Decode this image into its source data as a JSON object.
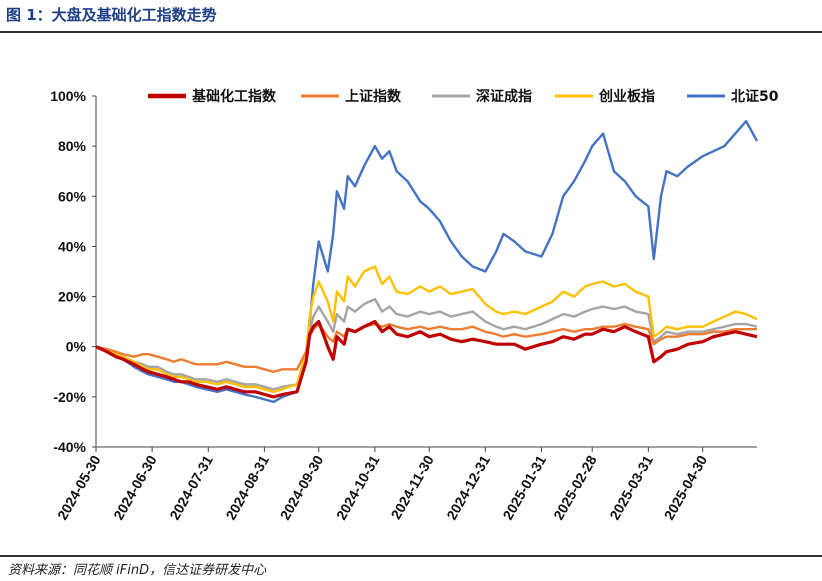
{
  "header": {
    "title": "图 1：大盘及基础化工指数走势"
  },
  "footer": {
    "source": "资料来源：同花顺 iFinD，信达证券研发中心"
  },
  "chart_data": {
    "type": "line",
    "ylim": [
      -40,
      100
    ],
    "yticks": [
      -40,
      -20,
      0,
      20,
      40,
      60,
      80,
      100
    ],
    "ytick_labels": [
      "-40%",
      "-20%",
      "0%",
      "20%",
      "40%",
      "60%",
      "80%",
      "100%"
    ],
    "xlim": [
      "2024-05-30",
      "2025-05-30"
    ],
    "xticks": [
      "2024-05-30",
      "2024-06-30",
      "2024-07-31",
      "2024-08-31",
      "2024-09-30",
      "2024-10-31",
      "2024-11-30",
      "2024-12-31",
      "2025-01-31",
      "2025-02-28",
      "2025-03-31",
      "2025-04-30"
    ],
    "grid": false,
    "legend_position": "top",
    "series": [
      {
        "name": "基础化工指数",
        "color": "#c00000",
        "x": [
          "2024-05-30",
          "2024-06-05",
          "2024-06-10",
          "2024-06-14",
          "2024-06-20",
          "2024-06-25",
          "2024-06-28",
          "2024-07-03",
          "2024-07-08",
          "2024-07-12",
          "2024-07-16",
          "2024-07-20",
          "2024-07-24",
          "2024-07-30",
          "2024-08-05",
          "2024-08-10",
          "2024-08-15",
          "2024-08-20",
          "2024-08-26",
          "2024-08-31",
          "2024-09-05",
          "2024-09-10",
          "2024-09-18",
          "2024-09-23",
          "2024-09-25",
          "2024-09-27",
          "2024-09-30",
          "2024-10-05",
          "2024-10-08",
          "2024-10-10",
          "2024-10-14",
          "2024-10-16",
          "2024-10-20",
          "2024-10-25",
          "2024-10-31",
          "2024-11-04",
          "2024-11-08",
          "2024-11-12",
          "2024-11-18",
          "2024-11-25",
          "2024-11-30",
          "2024-12-06",
          "2024-12-12",
          "2024-12-18",
          "2024-12-24",
          "2024-12-31",
          "2025-01-06",
          "2025-01-10",
          "2025-01-16",
          "2025-01-22",
          "2025-01-31",
          "2025-02-06",
          "2025-02-12",
          "2025-02-18",
          "2025-02-24",
          "2025-02-28",
          "2025-03-06",
          "2025-03-12",
          "2025-03-18",
          "2025-03-24",
          "2025-03-31",
          "2025-04-03",
          "2025-04-07",
          "2025-04-10",
          "2025-04-16",
          "2025-04-22",
          "2025-04-30",
          "2025-05-06",
          "2025-05-12",
          "2025-05-18",
          "2025-05-24",
          "2025-05-30"
        ],
        "y": [
          0,
          -2,
          -4,
          -5,
          -7,
          -9,
          -10,
          -11,
          -12,
          -13,
          -14,
          -14,
          -15,
          -16,
          -17,
          -16,
          -17,
          -18,
          -18,
          -19,
          -20,
          -19,
          -18,
          -6,
          5,
          8,
          10,
          0,
          -5,
          4,
          1,
          7,
          6,
          8,
          10,
          6,
          8,
          5,
          4,
          6,
          4,
          5,
          3,
          2,
          3,
          2,
          1,
          1,
          1,
          -1,
          1,
          2,
          4,
          3,
          5,
          5,
          7,
          6,
          8,
          6,
          4,
          -6,
          -4,
          -2,
          -1,
          1,
          2,
          4,
          5,
          6,
          5,
          4
        ]
      },
      {
        "name": "上证指数",
        "color": "#ed7d31",
        "x": [
          "2024-05-30",
          "2024-06-05",
          "2024-06-10",
          "2024-06-14",
          "2024-06-20",
          "2024-06-25",
          "2024-06-28",
          "2024-07-03",
          "2024-07-08",
          "2024-07-12",
          "2024-07-16",
          "2024-07-20",
          "2024-07-24",
          "2024-07-30",
          "2024-08-05",
          "2024-08-10",
          "2024-08-15",
          "2024-08-20",
          "2024-08-26",
          "2024-08-31",
          "2024-09-05",
          "2024-09-10",
          "2024-09-18",
          "2024-09-23",
          "2024-09-25",
          "2024-09-27",
          "2024-09-30",
          "2024-10-05",
          "2024-10-08",
          "2024-10-10",
          "2024-10-14",
          "2024-10-16",
          "2024-10-20",
          "2024-10-25",
          "2024-10-31",
          "2024-11-04",
          "2024-11-08",
          "2024-11-12",
          "2024-11-18",
          "2024-11-25",
          "2024-11-30",
          "2024-12-06",
          "2024-12-12",
          "2024-12-18",
          "2024-12-24",
          "2024-12-31",
          "2025-01-06",
          "2025-01-10",
          "2025-01-16",
          "2025-01-22",
          "2025-01-31",
          "2025-02-06",
          "2025-02-12",
          "2025-02-18",
          "2025-02-24",
          "2025-02-28",
          "2025-03-06",
          "2025-03-12",
          "2025-03-18",
          "2025-03-24",
          "2025-03-31",
          "2025-04-03",
          "2025-04-07",
          "2025-04-10",
          "2025-04-16",
          "2025-04-22",
          "2025-04-30",
          "2025-05-06",
          "2025-05-12",
          "2025-05-18",
          "2025-05-24",
          "2025-05-30"
        ],
        "y": [
          0,
          -1,
          -2,
          -3,
          -4,
          -3,
          -3,
          -4,
          -5,
          -6,
          -5,
          -6,
          -7,
          -7,
          -7,
          -6,
          -7,
          -8,
          -8,
          -9,
          -10,
          -9,
          -9,
          -2,
          4,
          7,
          9,
          4,
          2,
          6,
          4,
          7,
          6,
          8,
          9,
          8,
          9,
          8,
          7,
          8,
          7,
          8,
          7,
          7,
          8,
          6,
          5,
          4,
          5,
          4,
          5,
          6,
          7,
          6,
          7,
          7,
          8,
          8,
          9,
          8,
          7,
          1,
          3,
          4,
          4,
          5,
          5,
          6,
          6,
          7,
          7,
          7
        ]
      },
      {
        "name": "深证成指",
        "color": "#a5a5a5",
        "x": [
          "2024-05-30",
          "2024-06-05",
          "2024-06-10",
          "2024-06-14",
          "2024-06-20",
          "2024-06-25",
          "2024-06-28",
          "2024-07-03",
          "2024-07-08",
          "2024-07-12",
          "2024-07-16",
          "2024-07-20",
          "2024-07-24",
          "2024-07-30",
          "2024-08-05",
          "2024-08-10",
          "2024-08-15",
          "2024-08-20",
          "2024-08-26",
          "2024-08-31",
          "2024-09-05",
          "2024-09-10",
          "2024-09-18",
          "2024-09-23",
          "2024-09-25",
          "2024-09-27",
          "2024-09-30",
          "2024-10-05",
          "2024-10-08",
          "2024-10-10",
          "2024-10-14",
          "2024-10-16",
          "2024-10-20",
          "2024-10-25",
          "2024-10-31",
          "2024-11-04",
          "2024-11-08",
          "2024-11-12",
          "2024-11-18",
          "2024-11-25",
          "2024-11-30",
          "2024-12-06",
          "2024-12-12",
          "2024-12-18",
          "2024-12-24",
          "2024-12-31",
          "2025-01-06",
          "2025-01-10",
          "2025-01-16",
          "2025-01-22",
          "2025-01-31",
          "2025-02-06",
          "2025-02-12",
          "2025-02-18",
          "2025-02-24",
          "2025-02-28",
          "2025-03-06",
          "2025-03-12",
          "2025-03-18",
          "2025-03-24",
          "2025-03-31",
          "2025-04-03",
          "2025-04-07",
          "2025-04-10",
          "2025-04-16",
          "2025-04-22",
          "2025-04-30",
          "2025-05-06",
          "2025-05-12",
          "2025-05-18",
          "2025-05-24",
          "2025-05-30"
        ],
        "y": [
          0,
          -1,
          -3,
          -4,
          -6,
          -7,
          -8,
          -8,
          -10,
          -11,
          -11,
          -12,
          -13,
          -13,
          -14,
          -13,
          -14,
          -15,
          -15,
          -16,
          -17,
          -16,
          -15,
          -4,
          6,
          12,
          16,
          10,
          6,
          13,
          10,
          16,
          14,
          17,
          19,
          14,
          16,
          13,
          12,
          14,
          13,
          14,
          12,
          13,
          14,
          10,
          8,
          7,
          8,
          7,
          9,
          11,
          13,
          12,
          14,
          15,
          16,
          15,
          16,
          14,
          13,
          2,
          4,
          6,
          5,
          6,
          6,
          7,
          8,
          9,
          9,
          8
        ]
      },
      {
        "name": "创业板指",
        "color": "#ffc000",
        "x": [
          "2024-05-30",
          "2024-06-05",
          "2024-06-10",
          "2024-06-14",
          "2024-06-20",
          "2024-06-25",
          "2024-06-28",
          "2024-07-03",
          "2024-07-08",
          "2024-07-12",
          "2024-07-16",
          "2024-07-20",
          "2024-07-24",
          "2024-07-30",
          "2024-08-05",
          "2024-08-10",
          "2024-08-15",
          "2024-08-20",
          "2024-08-26",
          "2024-08-31",
          "2024-09-05",
          "2024-09-10",
          "2024-09-18",
          "2024-09-23",
          "2024-09-25",
          "2024-09-27",
          "2024-09-30",
          "2024-10-05",
          "2024-10-08",
          "2024-10-10",
          "2024-10-14",
          "2024-10-16",
          "2024-10-20",
          "2024-10-25",
          "2024-10-31",
          "2024-11-04",
          "2024-11-08",
          "2024-11-12",
          "2024-11-18",
          "2024-11-25",
          "2024-11-30",
          "2024-12-06",
          "2024-12-12",
          "2024-12-18",
          "2024-12-24",
          "2024-12-31",
          "2025-01-06",
          "2025-01-10",
          "2025-01-16",
          "2025-01-22",
          "2025-01-31",
          "2025-02-06",
          "2025-02-12",
          "2025-02-18",
          "2025-02-24",
          "2025-02-28",
          "2025-03-06",
          "2025-03-12",
          "2025-03-18",
          "2025-03-24",
          "2025-03-31",
          "2025-04-03",
          "2025-04-07",
          "2025-04-10",
          "2025-04-16",
          "2025-04-22",
          "2025-04-30",
          "2025-05-06",
          "2025-05-12",
          "2025-05-18",
          "2025-05-24",
          "2025-05-30"
        ],
        "y": [
          0,
          -1,
          -3,
          -4,
          -6,
          -8,
          -9,
          -9,
          -11,
          -12,
          -12,
          -13,
          -14,
          -14,
          -15,
          -14,
          -15,
          -16,
          -16,
          -17,
          -18,
          -17,
          -15,
          -2,
          12,
          20,
          26,
          18,
          10,
          22,
          18,
          28,
          24,
          30,
          32,
          25,
          28,
          22,
          21,
          24,
          22,
          24,
          21,
          22,
          23,
          17,
          14,
          13,
          14,
          13,
          16,
          18,
          22,
          20,
          24,
          25,
          26,
          24,
          25,
          22,
          20,
          4,
          6,
          8,
          7,
          8,
          8,
          10,
          12,
          14,
          13,
          11
        ]
      },
      {
        "name": "北证50",
        "color": "#4472c4",
        "x": [
          "2024-05-30",
          "2024-06-05",
          "2024-06-10",
          "2024-06-14",
          "2024-06-20",
          "2024-06-25",
          "2024-06-28",
          "2024-07-03",
          "2024-07-08",
          "2024-07-12",
          "2024-07-16",
          "2024-07-20",
          "2024-07-24",
          "2024-07-30",
          "2024-08-05",
          "2024-08-10",
          "2024-08-15",
          "2024-08-20",
          "2024-08-26",
          "2024-08-31",
          "2024-09-05",
          "2024-09-10",
          "2024-09-18",
          "2024-09-23",
          "2024-09-25",
          "2024-09-27",
          "2024-09-30",
          "2024-10-05",
          "2024-10-08",
          "2024-10-10",
          "2024-10-14",
          "2024-10-16",
          "2024-10-20",
          "2024-10-25",
          "2024-10-31",
          "2024-11-04",
          "2024-11-08",
          "2024-11-12",
          "2024-11-18",
          "2024-11-25",
          "2024-11-30",
          "2024-12-06",
          "2024-12-12",
          "2024-12-18",
          "2024-12-24",
          "2024-12-31",
          "2025-01-06",
          "2025-01-10",
          "2025-01-16",
          "2025-01-22",
          "2025-01-31",
          "2025-02-06",
          "2025-02-12",
          "2025-02-18",
          "2025-02-24",
          "2025-02-28",
          "2025-03-06",
          "2025-03-12",
          "2025-03-18",
          "2025-03-24",
          "2025-03-31",
          "2025-04-03",
          "2025-04-07",
          "2025-04-10",
          "2025-04-16",
          "2025-04-22",
          "2025-04-30",
          "2025-05-06",
          "2025-05-12",
          "2025-05-18",
          "2025-05-24",
          "2025-05-30"
        ],
        "y": [
          0,
          -2,
          -4,
          -5,
          -8,
          -10,
          -11,
          -12,
          -13,
          -14,
          -14,
          -15,
          -16,
          -17,
          -18,
          -17,
          -18,
          -19,
          -20,
          -21,
          -22,
          -20,
          -18,
          -5,
          10,
          25,
          42,
          30,
          45,
          62,
          55,
          68,
          64,
          72,
          80,
          75,
          78,
          70,
          66,
          58,
          55,
          50,
          42,
          36,
          32,
          30,
          38,
          45,
          42,
          38,
          36,
          45,
          60,
          66,
          74,
          80,
          85,
          70,
          66,
          60,
          56,
          35,
          60,
          70,
          68,
          72,
          76,
          78,
          80,
          85,
          90,
          82
        ]
      }
    ]
  }
}
